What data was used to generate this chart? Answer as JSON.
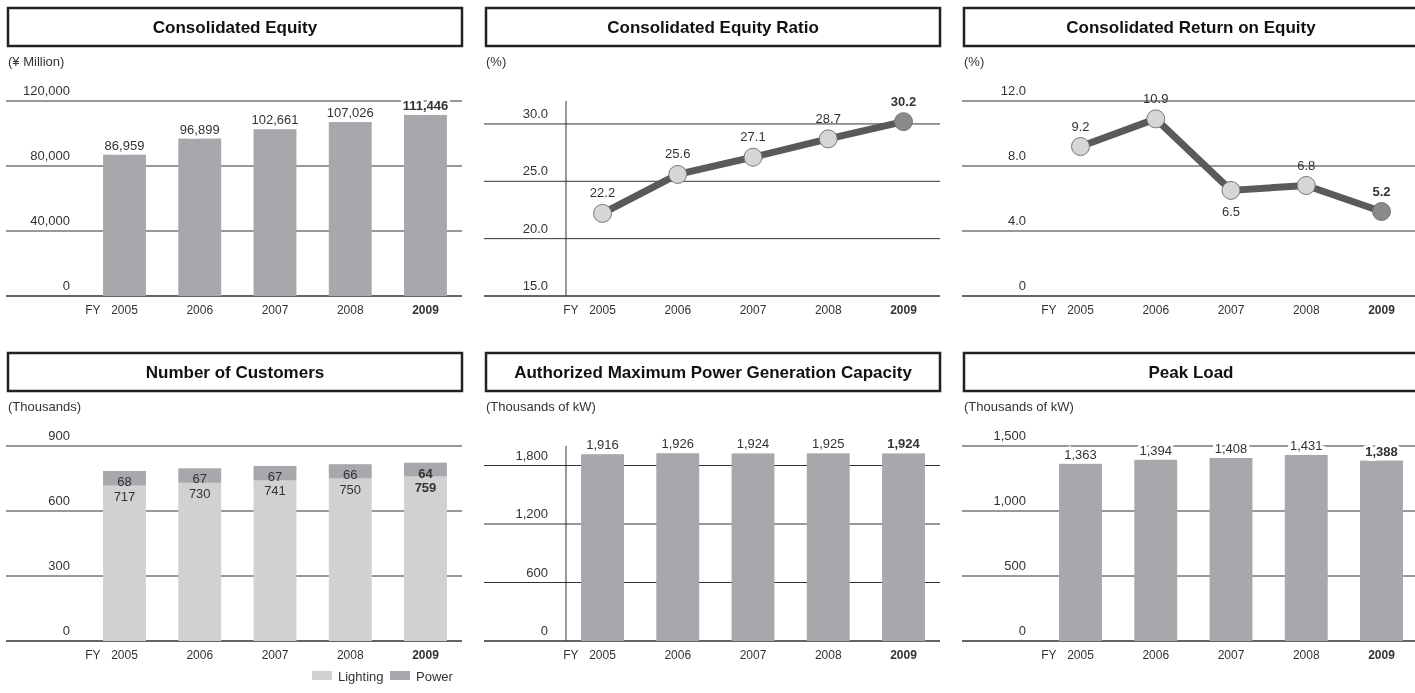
{
  "chart_data": [
    {
      "type": "bar",
      "title": "Consolidated Equity",
      "ylabel": "(¥ Million)",
      "xlabel": "FY",
      "categories": [
        "2005",
        "2006",
        "2007",
        "2008",
        "2009"
      ],
      "values": [
        86959,
        96899,
        102661,
        107026,
        111446
      ],
      "value_labels": [
        "86,959",
        "96,899",
        "102,661",
        "107,026",
        "111,446"
      ],
      "color": "#a7a8ab",
      "ylim": [
        0,
        120000
      ],
      "yticks": [
        {
          "value": 0,
          "label": "0"
        },
        {
          "value": 40000,
          "label": "40,000"
        },
        {
          "value": 80000,
          "label": "80,000"
        },
        {
          "value": 120000,
          "label": "120,000"
        }
      ],
      "grid": "y"
    },
    {
      "type": "line",
      "title": "Consolidated Equity Ratio",
      "ylabel": "(%)",
      "xlabel": "FY",
      "categories": [
        "2005",
        "2006",
        "2007",
        "2008",
        "2009"
      ],
      "values": [
        22.2,
        25.6,
        27.1,
        28.7,
        30.2
      ],
      "color": "#5a5a5a",
      "marker": "circle",
      "ylim": [
        15,
        32
      ],
      "yticks": [
        {
          "value": 15,
          "label": "15.0"
        },
        {
          "value": 20,
          "label": "20.0"
        },
        {
          "value": 25,
          "label": "25.0"
        },
        {
          "value": 30,
          "label": "30.0"
        }
      ],
      "grid": "y",
      "data_labels": true
    },
    {
      "type": "line",
      "title": "Consolidated Return on Equity",
      "ylabel": "(%)",
      "xlabel": "FY",
      "categories": [
        "2005",
        "2006",
        "2007",
        "2008",
        "2009"
      ],
      "values": [
        9.2,
        10.9,
        6.5,
        6.8,
        5.2
      ],
      "color": "#5a5a5a",
      "marker": "circle",
      "ylim": [
        0,
        12
      ],
      "yticks": [
        0,
        {
          "value": 4,
          "label": "4.0"
        },
        {
          "value": 8,
          "label": "8.0"
        },
        {
          "value": 12,
          "label": "12.0"
        }
      ],
      "grid": "y",
      "data_labels": true
    },
    {
      "type": "bar",
      "title": "Number of Customers",
      "ylabel": "(Thousands)",
      "xlabel": "FY",
      "categories": [
        "2005",
        "2006",
        "2007",
        "2008",
        "2009"
      ],
      "stacked": true,
      "series": [
        {
          "name": "Lighting",
          "color": "#d0d1d3",
          "values": [
            717,
            730,
            741,
            750,
            759
          ]
        },
        {
          "name": "Power",
          "color": "#a7a8ab",
          "values": [
            68,
            67,
            67,
            66,
            64
          ]
        }
      ],
      "ylim": [
        0,
        900
      ],
      "yticks": [
        0,
        300,
        600,
        900
      ],
      "grid": "y",
      "legend": "bottom right",
      "data_labels": true
    },
    {
      "type": "bar",
      "title": "Authorized Maximum Power Generation Capacity",
      "ylabel": "(Thousands of kW)",
      "xlabel": "FY",
      "categories": [
        "2005",
        "2006",
        "2007",
        "2008",
        "2009"
      ],
      "values": [
        1916,
        1926,
        1924,
        1925,
        1924
      ],
      "value_labels": [
        "1,916",
        "1,926",
        "1,924",
        "1,925",
        "1,924"
      ],
      "color": "#a7a8ab",
      "ylim": [
        0,
        2000
      ],
      "yticks": [
        0,
        600,
        {
          "value": 1200,
          "label": "1,200"
        },
        {
          "value": 1800,
          "label": "1,800"
        }
      ],
      "grid": "y"
    },
    {
      "type": "bar",
      "title": "Peak Load",
      "ylabel": "(Thousands of kW)",
      "xlabel": "FY",
      "categories": [
        "2005",
        "2006",
        "2007",
        "2008",
        "2009"
      ],
      "values": [
        1363,
        1394,
        1408,
        1431,
        1388
      ],
      "value_labels": [
        "1,363",
        "1,394",
        "1,408",
        "1,431",
        "1,388"
      ],
      "color": "#a7a8ab",
      "ylim": [
        0,
        1500
      ],
      "yticks": [
        0,
        500,
        {
          "value": 1000,
          "label": "1,000"
        },
        {
          "value": 1500,
          "label": "1,500"
        }
      ],
      "grid": "y"
    }
  ]
}
